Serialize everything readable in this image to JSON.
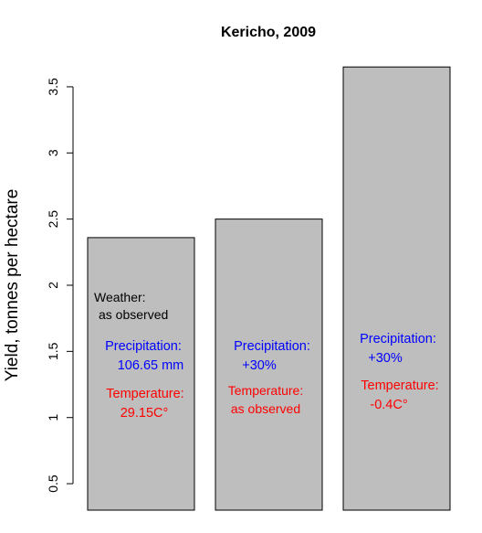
{
  "chart_data": {
    "type": "bar",
    "title": "Kericho, 2009",
    "xlabel": "",
    "ylabel": "Yield, tonnes per hectare",
    "ylim": [
      0.3,
      3.7
    ],
    "yticks": [
      0.5,
      1,
      1.5,
      2,
      2.5,
      3,
      3.5
    ],
    "ytick_labels": [
      "0.5",
      "1",
      "1.5",
      "2",
      "2.5",
      "3",
      "3.5"
    ],
    "values": [
      2.36,
      2.5,
      3.65
    ],
    "bar_color": "#bebebe",
    "annotations": [
      [
        {
          "text": "Weather:",
          "color": "#000000"
        },
        {
          "text": "as observed",
          "color": "#000000"
        },
        {
          "text": "Precipitation:",
          "color": "#0000ff"
        },
        {
          "text": "106.65 mm",
          "color": "#0000ff"
        },
        {
          "text": "Temperature:",
          "color": "#ff0000"
        },
        {
          "text": "29.15C°",
          "color": "#ff0000"
        }
      ],
      [
        {
          "text": "Precipitation:",
          "color": "#0000ff"
        },
        {
          "text": "+30%",
          "color": "#0000ff"
        },
        {
          "text": "Temperature:",
          "color": "#ff0000"
        },
        {
          "text": "as observed",
          "color": "#ff0000"
        }
      ],
      [
        {
          "text": "Precipitation:",
          "color": "#0000ff"
        },
        {
          "text": "+30%",
          "color": "#0000ff"
        },
        {
          "text": "Temperature:",
          "color": "#ff0000"
        },
        {
          "text": "-0.4C°",
          "color": "#ff0000"
        }
      ]
    ]
  }
}
